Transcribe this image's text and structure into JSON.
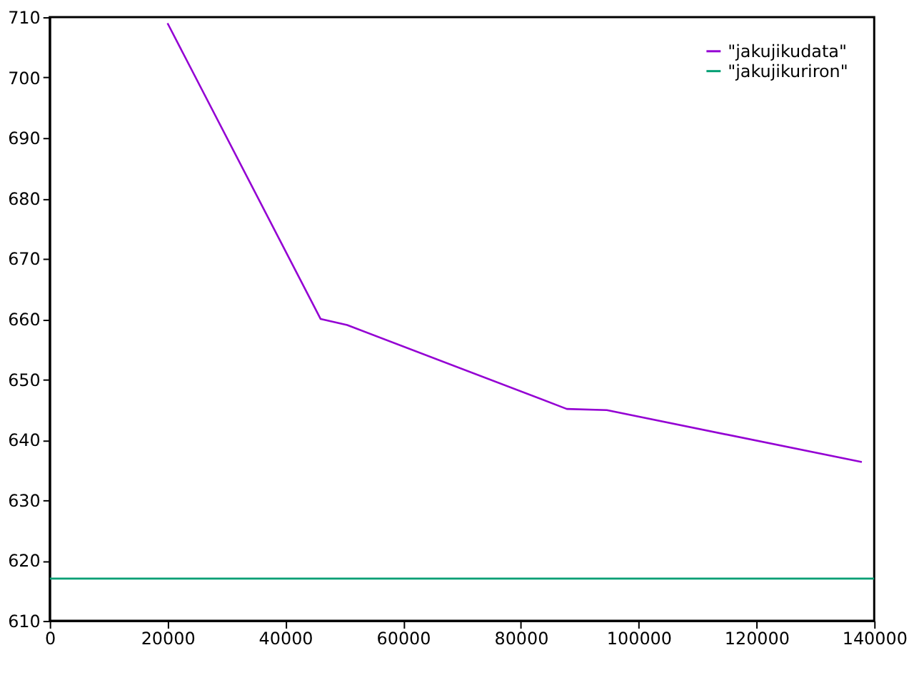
{
  "chart_data": {
    "type": "line",
    "xlim": [
      0,
      140000
    ],
    "ylim": [
      610,
      710
    ],
    "xticks": [
      0,
      20000,
      40000,
      60000,
      80000,
      100000,
      120000,
      140000
    ],
    "yticks": [
      610,
      620,
      630,
      640,
      650,
      660,
      670,
      680,
      690,
      700,
      710
    ],
    "grid": false,
    "legend": "top right",
    "series": [
      {
        "name": "\"jakujikudata\"",
        "color": "#9400d3",
        "x": [
          20000,
          46000,
          50500,
          87800,
          94600,
          137900
        ],
        "values": [
          709,
          660,
          659,
          645.1,
          644.9,
          636.3
        ]
      },
      {
        "name": "\"jakujikuriron\"",
        "color": "#009e73",
        "x": [
          0,
          140000
        ],
        "values": [
          617,
          617
        ]
      }
    ]
  }
}
